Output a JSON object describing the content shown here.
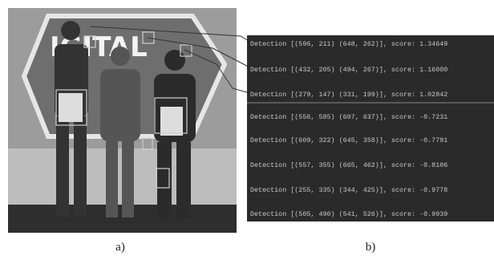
{
  "photo": {
    "sign_text": "IGITAL",
    "caption": "a)"
  },
  "console": {
    "caption": "b)",
    "lines": [
      "Detection [(596, 211) (648, 262)], score: 1.34649",
      "Detection [(432, 205) (494, 267)], score: 1.16000",
      "Detection [(279, 147) (331, 199)], score: 1.02842",
      "Detection [(556, 585) (607, 637)], score: -0.7231",
      "Detection [(609, 322) (645, 358)], score: -0.7791",
      "Detection [(557, 355) (665, 462)], score: -0.8106",
      "Detection [(255, 335) (344, 425)], score: -0.9778",
      "Detection [(505, 490) (541, 526)], score: -0.9939"
    ]
  }
}
